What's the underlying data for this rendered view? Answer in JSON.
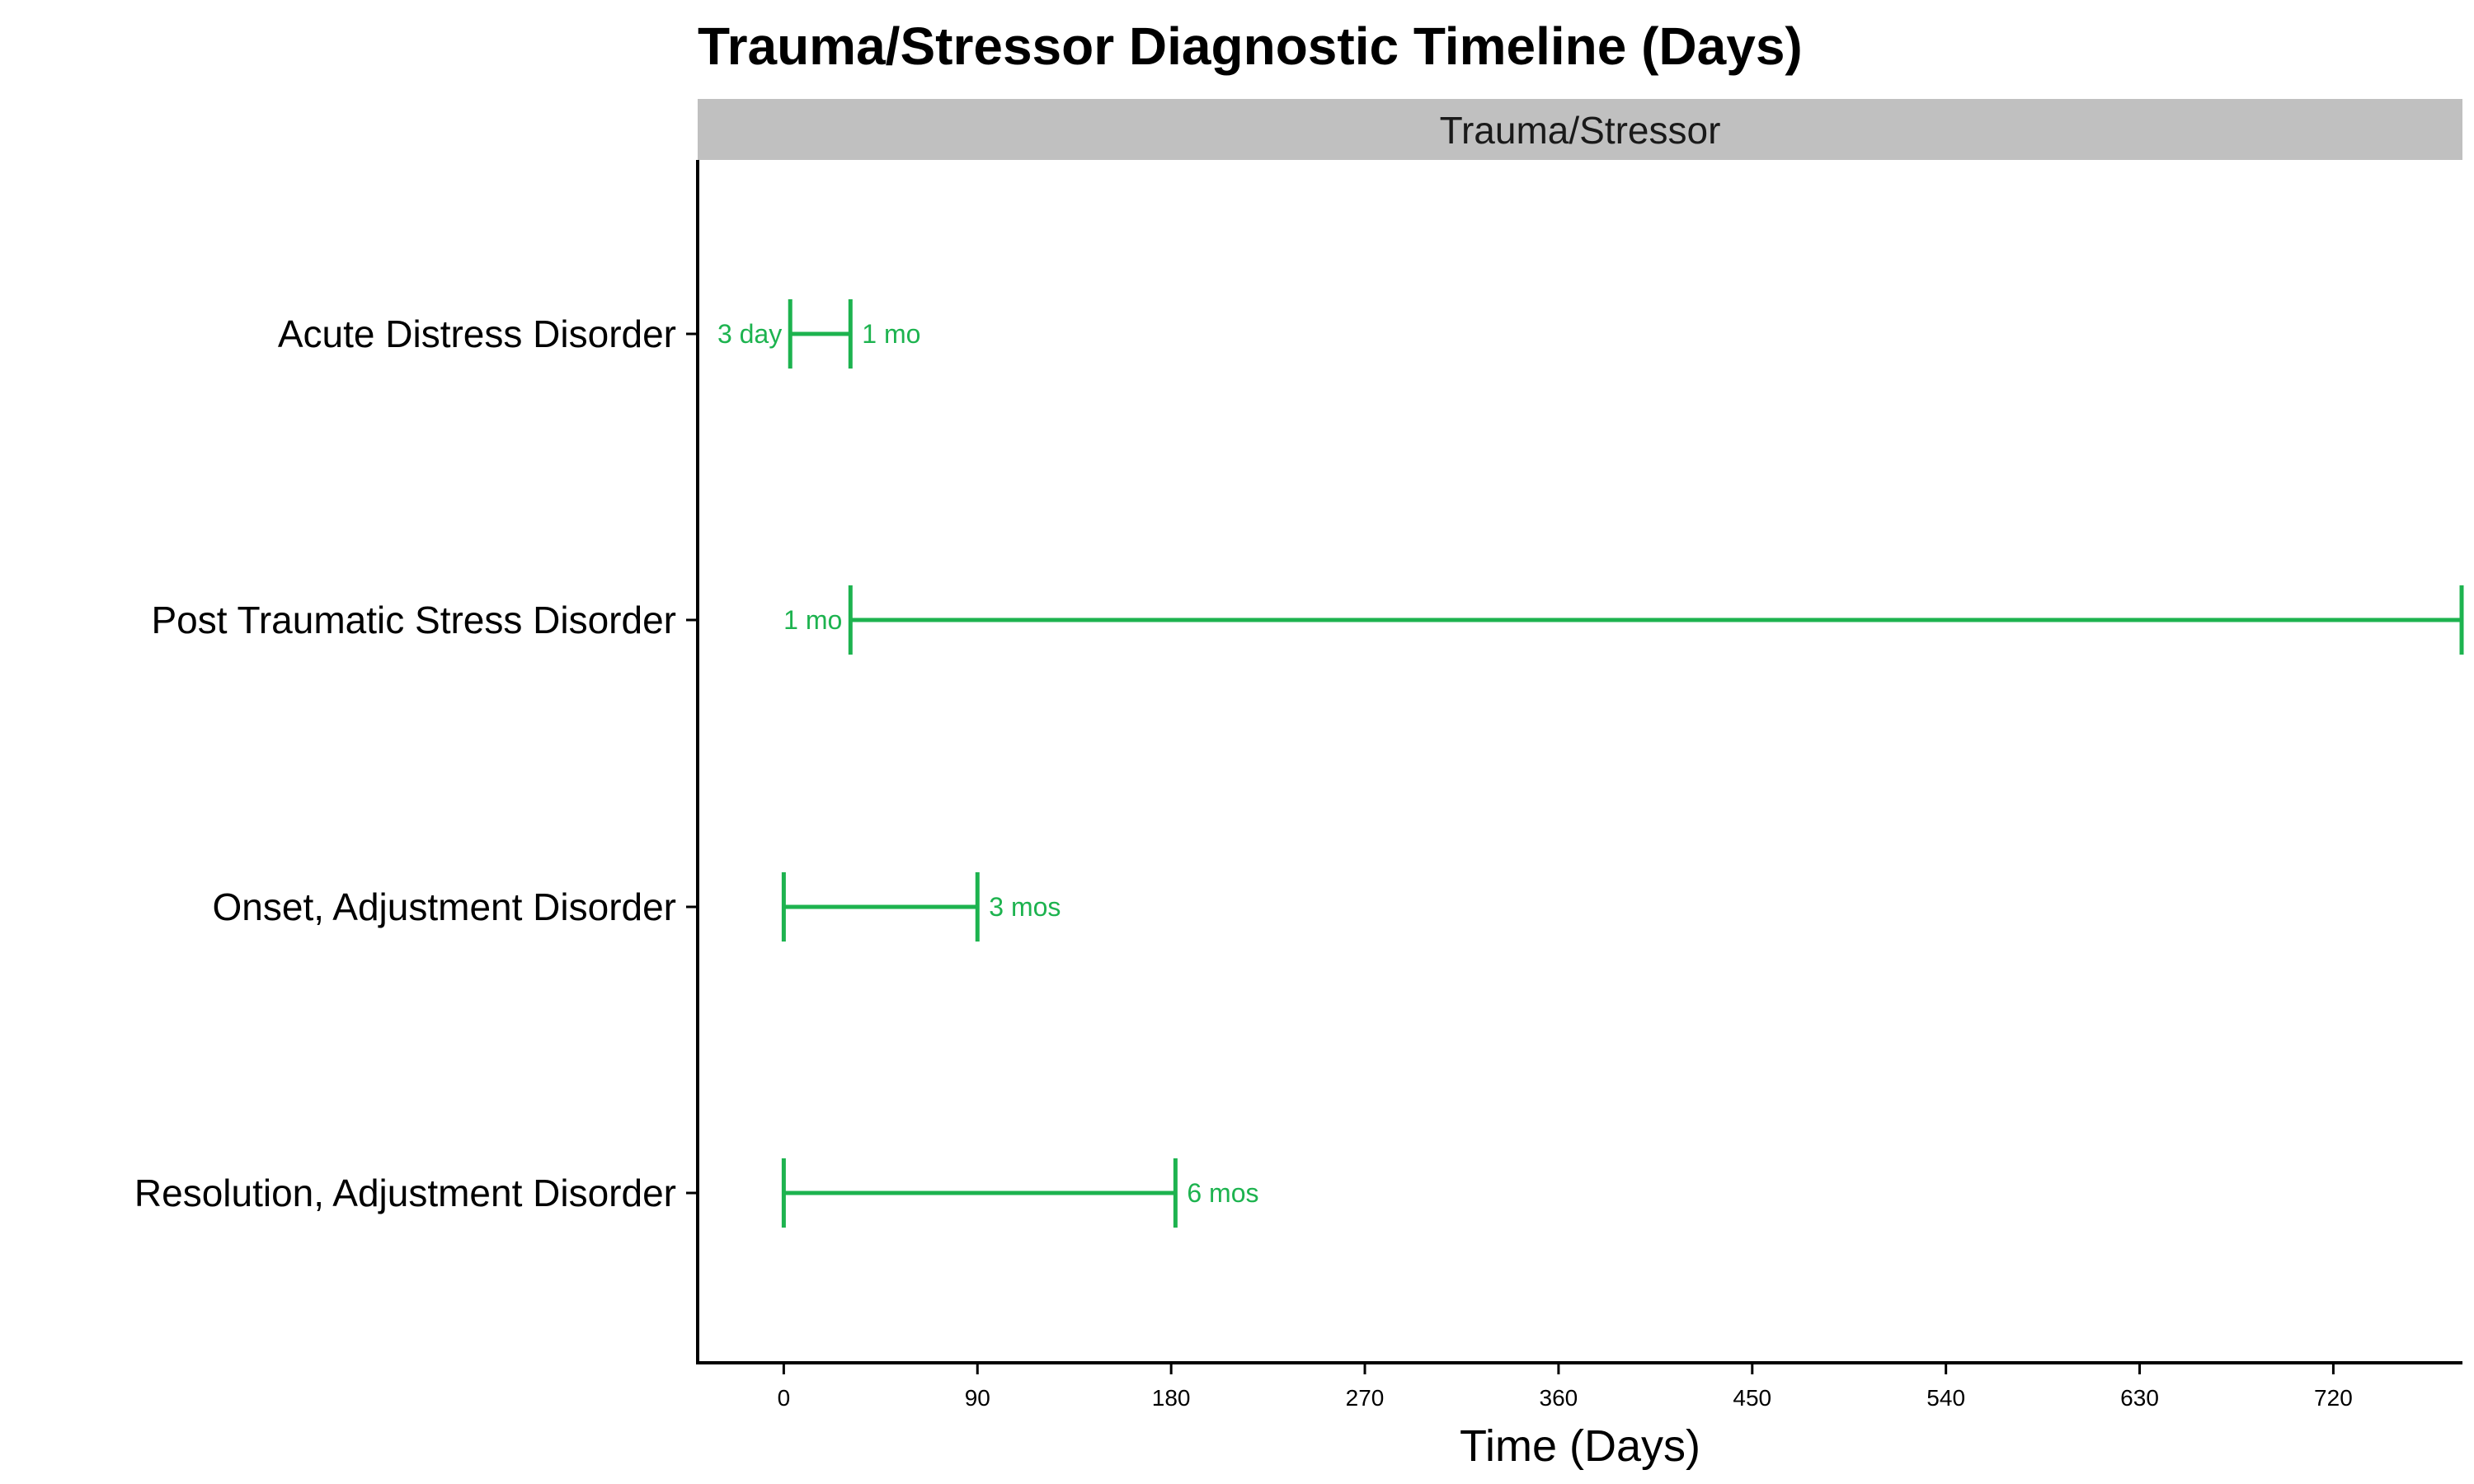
{
  "chart_data": {
    "type": "interval",
    "title": "Trauma/Stressor Diagnostic Timeline (Days)",
    "facet_label": "Trauma/Stressor",
    "xlabel": "Time (Days)",
    "ylabel": "",
    "xlim": [
      -40,
      780
    ],
    "x_ticks": [
      0,
      90,
      180,
      270,
      360,
      450,
      540,
      630,
      720
    ],
    "grid": false,
    "legend": "none",
    "series_color": "#1db34f",
    "intervals": [
      {
        "category": "Acute Distress Disorder",
        "start": 3,
        "end": 31,
        "start_label": "3 day",
        "end_label": "1 mo"
      },
      {
        "category": "Post Traumatic Stress Disorder",
        "start": 31,
        "end": 780,
        "start_label": "1 mo",
        "end_label": ""
      },
      {
        "category": "Onset, Adjustment Disorder",
        "start": 0,
        "end": 90,
        "start_label": "",
        "end_label": "3 mos"
      },
      {
        "category": "Resolution, Adjustment Disorder",
        "start": 0,
        "end": 182,
        "start_label": "",
        "end_label": "6 mos"
      }
    ]
  }
}
